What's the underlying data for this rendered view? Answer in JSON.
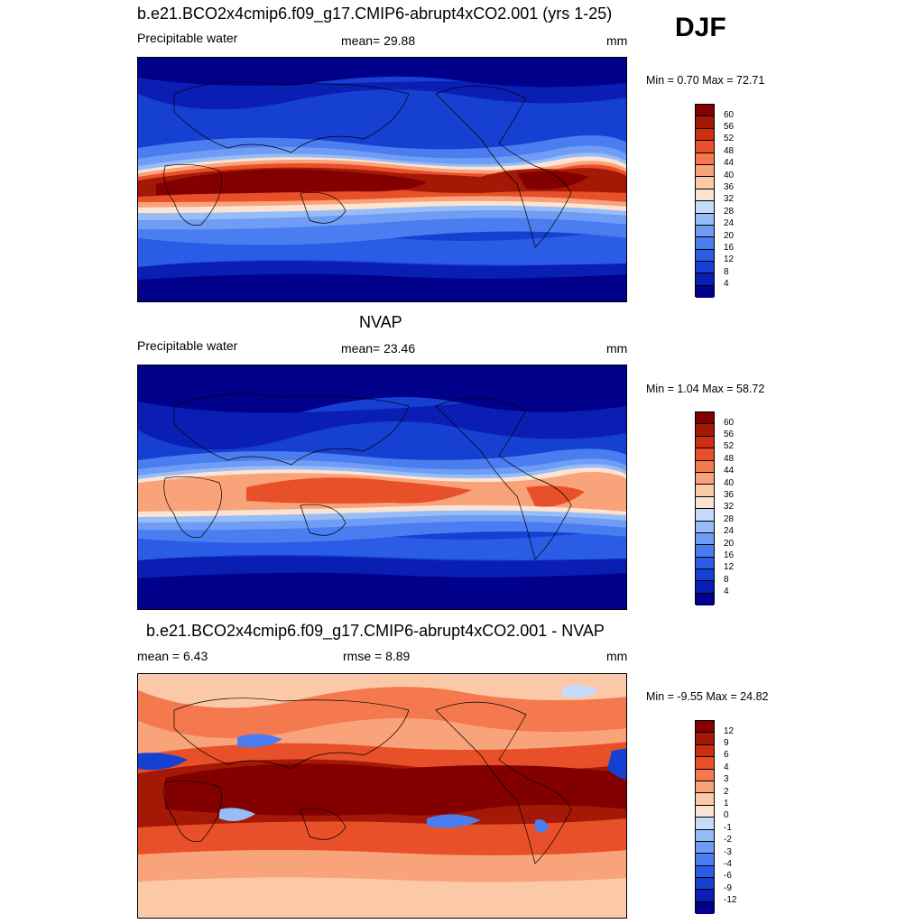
{
  "season": "DJF",
  "panels": [
    {
      "title": "b.e21.BCO2x4cmip6.f09_g17.CMIP6-abrupt4xCO2.001 (yrs 1-25)",
      "left_label": "Precipitable water",
      "center_label": "mean=  29.88",
      "right_label": "mm",
      "minmax": "Min =   0.70 Max =  72.71",
      "colorbar_labels": [
        "60",
        "56",
        "52",
        "48",
        "44",
        "40",
        "36",
        "32",
        "28",
        "24",
        "20",
        "16",
        "12",
        "8",
        "4"
      ],
      "colors": [
        "#00008b",
        "#0a1eb4",
        "#1640d2",
        "#2a5ce6",
        "#4a7ef0",
        "#6f9cf4",
        "#98bcf6",
        "#c4dcfa",
        "#fbe4d4",
        "#fbc9a8",
        "#f9a37a",
        "#f5794e",
        "#e8502a",
        "#cc2f10",
        "#a41806",
        "#820000"
      ]
    },
    {
      "title": "NVAP",
      "left_label": "Precipitable water",
      "center_label": "mean=  23.46",
      "right_label": "mm",
      "minmax": "Min =   1.04 Max =  58.72",
      "colorbar_labels": [
        "60",
        "56",
        "52",
        "48",
        "44",
        "40",
        "36",
        "32",
        "28",
        "24",
        "20",
        "16",
        "12",
        "8",
        "4"
      ],
      "colors": [
        "#00008b",
        "#0a1eb4",
        "#1640d2",
        "#2a5ce6",
        "#4a7ef0",
        "#6f9cf4",
        "#98bcf6",
        "#c4dcfa",
        "#fbe4d4",
        "#fbc9a8",
        "#f9a37a",
        "#f5794e",
        "#e8502a",
        "#cc2f10",
        "#a41806",
        "#820000"
      ]
    },
    {
      "title": "b.e21.BCO2x4cmip6.f09_g17.CMIP6-abrupt4xCO2.001 - NVAP",
      "left_label": "mean =   6.43",
      "center_label": "rmse =   8.89",
      "right_label": "mm",
      "minmax": "Min =  -9.55 Max =  24.82",
      "colorbar_labels": [
        "12",
        "9",
        "6",
        "4",
        "3",
        "2",
        "1",
        "0",
        "-1",
        "-2",
        "-3",
        "-4",
        "-6",
        "-9",
        "-12"
      ],
      "colors": [
        "#00008b",
        "#0a1eb4",
        "#1640d2",
        "#2a5ce6",
        "#4a7ef0",
        "#6f9cf4",
        "#98bcf6",
        "#c4dcfa",
        "#fbe4d4",
        "#fbc9a8",
        "#f9a37a",
        "#f5794e",
        "#e8502a",
        "#cc2f10",
        "#a41806",
        "#820000"
      ]
    }
  ]
}
